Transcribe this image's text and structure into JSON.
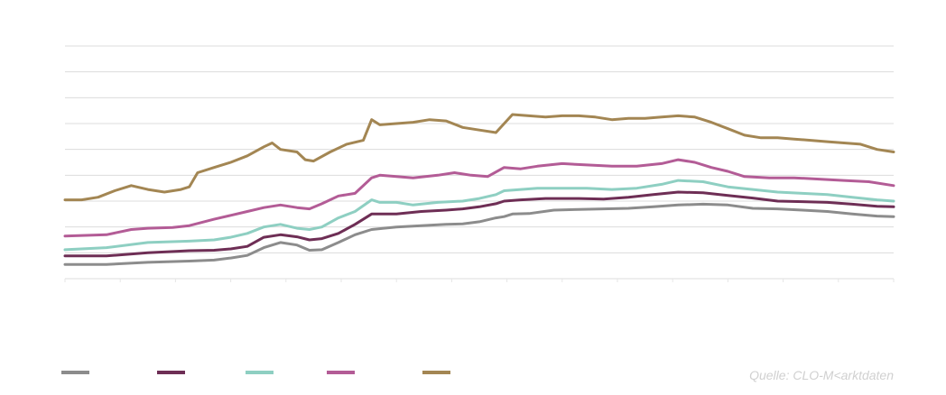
{
  "chart_data": {
    "type": "line",
    "title": "",
    "xlabel": "",
    "ylabel": "",
    "ylim": [
      0,
      9
    ],
    "x_range": [
      0,
      100
    ],
    "y_gridlines": [
      0,
      1,
      2,
      3,
      4,
      5,
      6,
      7,
      8,
      9
    ],
    "grid": true,
    "legend_position": "bottom-left",
    "series": [
      {
        "color": "#8c8c8c",
        "points": [
          [
            0,
            0.55
          ],
          [
            5,
            0.55
          ],
          [
            10,
            0.63
          ],
          [
            15,
            0.68
          ],
          [
            18,
            0.72
          ],
          [
            20,
            0.8
          ],
          [
            22,
            0.9
          ],
          [
            24,
            1.2
          ],
          [
            26,
            1.4
          ],
          [
            28,
            1.3
          ],
          [
            29.5,
            1.1
          ],
          [
            31,
            1.12
          ],
          [
            33,
            1.4
          ],
          [
            35,
            1.7
          ],
          [
            37,
            1.9
          ],
          [
            40,
            2.0
          ],
          [
            43,
            2.05
          ],
          [
            46,
            2.1
          ],
          [
            48,
            2.12
          ],
          [
            50,
            2.2
          ],
          [
            52,
            2.35
          ],
          [
            53,
            2.4
          ],
          [
            54,
            2.5
          ],
          [
            56,
            2.52
          ],
          [
            59,
            2.65
          ],
          [
            62,
            2.68
          ],
          [
            65,
            2.7
          ],
          [
            68,
            2.72
          ],
          [
            71,
            2.78
          ],
          [
            74,
            2.85
          ],
          [
            77,
            2.88
          ],
          [
            80,
            2.85
          ],
          [
            83,
            2.72
          ],
          [
            86,
            2.7
          ],
          [
            89,
            2.65
          ],
          [
            92,
            2.6
          ],
          [
            95,
            2.5
          ],
          [
            98,
            2.42
          ],
          [
            100,
            2.4
          ]
        ]
      },
      {
        "color": "#6e2e55",
        "points": [
          [
            0,
            0.88
          ],
          [
            5,
            0.88
          ],
          [
            10,
            1.0
          ],
          [
            15,
            1.08
          ],
          [
            18,
            1.1
          ],
          [
            20,
            1.15
          ],
          [
            22,
            1.25
          ],
          [
            24,
            1.6
          ],
          [
            26,
            1.7
          ],
          [
            28,
            1.62
          ],
          [
            29.5,
            1.5
          ],
          [
            31,
            1.55
          ],
          [
            33,
            1.75
          ],
          [
            35,
            2.1
          ],
          [
            37,
            2.5
          ],
          [
            40,
            2.5
          ],
          [
            43,
            2.6
          ],
          [
            46,
            2.65
          ],
          [
            48,
            2.7
          ],
          [
            50,
            2.78
          ],
          [
            52,
            2.9
          ],
          [
            53,
            3.0
          ],
          [
            55,
            3.05
          ],
          [
            58,
            3.1
          ],
          [
            62,
            3.1
          ],
          [
            65,
            3.08
          ],
          [
            68,
            3.15
          ],
          [
            71,
            3.25
          ],
          [
            74,
            3.35
          ],
          [
            77,
            3.32
          ],
          [
            80,
            3.22
          ],
          [
            83,
            3.12
          ],
          [
            86,
            3.0
          ],
          [
            89,
            2.98
          ],
          [
            92,
            2.95
          ],
          [
            95,
            2.88
          ],
          [
            98,
            2.8
          ],
          [
            100,
            2.78
          ]
        ]
      },
      {
        "color": "#8ecfc2",
        "points": [
          [
            0,
            1.12
          ],
          [
            5,
            1.2
          ],
          [
            10,
            1.4
          ],
          [
            15,
            1.45
          ],
          [
            18,
            1.5
          ],
          [
            20,
            1.6
          ],
          [
            22,
            1.75
          ],
          [
            24,
            2.0
          ],
          [
            26,
            2.1
          ],
          [
            28,
            1.95
          ],
          [
            29.5,
            1.9
          ],
          [
            31,
            2.0
          ],
          [
            33,
            2.35
          ],
          [
            35,
            2.6
          ],
          [
            37,
            3.05
          ],
          [
            38,
            2.95
          ],
          [
            40,
            2.95
          ],
          [
            42,
            2.85
          ],
          [
            45,
            2.95
          ],
          [
            48,
            3.0
          ],
          [
            50,
            3.1
          ],
          [
            52,
            3.25
          ],
          [
            53,
            3.4
          ],
          [
            55,
            3.45
          ],
          [
            57,
            3.5
          ],
          [
            60,
            3.5
          ],
          [
            63,
            3.5
          ],
          [
            66,
            3.45
          ],
          [
            69,
            3.5
          ],
          [
            72,
            3.65
          ],
          [
            74,
            3.8
          ],
          [
            77,
            3.75
          ],
          [
            80,
            3.55
          ],
          [
            83,
            3.45
          ],
          [
            86,
            3.35
          ],
          [
            89,
            3.3
          ],
          [
            92,
            3.25
          ],
          [
            95,
            3.15
          ],
          [
            98,
            3.05
          ],
          [
            100,
            3.0
          ]
        ]
      },
      {
        "color": "#b35c96",
        "points": [
          [
            0,
            1.65
          ],
          [
            5,
            1.7
          ],
          [
            8,
            1.9
          ],
          [
            10,
            1.95
          ],
          [
            13,
            1.98
          ],
          [
            15,
            2.05
          ],
          [
            18,
            2.3
          ],
          [
            20,
            2.45
          ],
          [
            22,
            2.6
          ],
          [
            24,
            2.75
          ],
          [
            26,
            2.85
          ],
          [
            28,
            2.75
          ],
          [
            29.5,
            2.7
          ],
          [
            31,
            2.9
          ],
          [
            33,
            3.2
          ],
          [
            35,
            3.3
          ],
          [
            37,
            3.9
          ],
          [
            38,
            4.0
          ],
          [
            40,
            3.95
          ],
          [
            42,
            3.9
          ],
          [
            45,
            4.0
          ],
          [
            47,
            4.1
          ],
          [
            49,
            4.0
          ],
          [
            51,
            3.95
          ],
          [
            53,
            4.3
          ],
          [
            55,
            4.25
          ],
          [
            57,
            4.35
          ],
          [
            60,
            4.45
          ],
          [
            63,
            4.4
          ],
          [
            66,
            4.35
          ],
          [
            69,
            4.35
          ],
          [
            72,
            4.45
          ],
          [
            74,
            4.6
          ],
          [
            76,
            4.5
          ],
          [
            78,
            4.3
          ],
          [
            80,
            4.15
          ],
          [
            82,
            3.95
          ],
          [
            85,
            3.9
          ],
          [
            88,
            3.9
          ],
          [
            91,
            3.85
          ],
          [
            94,
            3.8
          ],
          [
            97,
            3.75
          ],
          [
            100,
            3.6
          ]
        ]
      },
      {
        "color": "#a38653",
        "points": [
          [
            0,
            3.05
          ],
          [
            2,
            3.05
          ],
          [
            4,
            3.15
          ],
          [
            6,
            3.4
          ],
          [
            8,
            3.6
          ],
          [
            10,
            3.45
          ],
          [
            12,
            3.35
          ],
          [
            14,
            3.45
          ],
          [
            15,
            3.55
          ],
          [
            16,
            4.1
          ],
          [
            18,
            4.3
          ],
          [
            20,
            4.5
          ],
          [
            22,
            4.75
          ],
          [
            24,
            5.1
          ],
          [
            25,
            5.25
          ],
          [
            26,
            5.0
          ],
          [
            28,
            4.9
          ],
          [
            29,
            4.6
          ],
          [
            30,
            4.55
          ],
          [
            32,
            4.9
          ],
          [
            34,
            5.2
          ],
          [
            36,
            5.35
          ],
          [
            37,
            6.15
          ],
          [
            38,
            5.95
          ],
          [
            40,
            6.0
          ],
          [
            42,
            6.05
          ],
          [
            44,
            6.15
          ],
          [
            46,
            6.1
          ],
          [
            48,
            5.85
          ],
          [
            50,
            5.75
          ],
          [
            52,
            5.65
          ],
          [
            54,
            6.35
          ],
          [
            56,
            6.3
          ],
          [
            58,
            6.25
          ],
          [
            60,
            6.3
          ],
          [
            62,
            6.3
          ],
          [
            64,
            6.25
          ],
          [
            66,
            6.15
          ],
          [
            68,
            6.2
          ],
          [
            70,
            6.2
          ],
          [
            72,
            6.25
          ],
          [
            74,
            6.3
          ],
          [
            76,
            6.25
          ],
          [
            78,
            6.05
          ],
          [
            80,
            5.8
          ],
          [
            82,
            5.55
          ],
          [
            84,
            5.45
          ],
          [
            86,
            5.45
          ],
          [
            88,
            5.4
          ],
          [
            90,
            5.35
          ],
          [
            92,
            5.3
          ],
          [
            94,
            5.25
          ],
          [
            96,
            5.2
          ],
          [
            98,
            5.0
          ],
          [
            100,
            4.9
          ]
        ]
      }
    ]
  },
  "source_label": "Quelle: CLO-M<arktdaten"
}
